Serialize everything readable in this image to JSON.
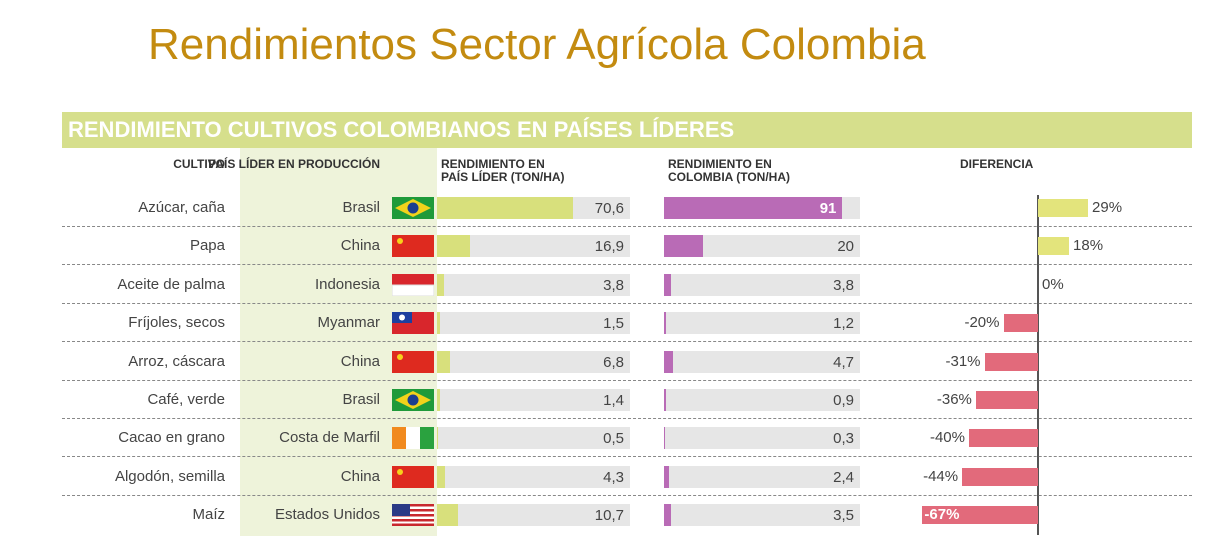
{
  "title": "Rendimientos Sector Agrícola Colombia",
  "table": {
    "heading": "RENDIMIENTO CULTIVOS COLOMBIANOS EN PAÍSES LÍDERES",
    "headers": [
      "CULTIVO",
      "PAÍS LÍDER EN PRODUCCIÓN",
      "RENDIMIENTO EN\nPAÍS LÍDER (TON/HA)",
      "RENDIMIENTO EN\nCOLOMBIA (TON/HA)",
      "DIFERENCIA"
    ],
    "crops": [
      "Azúcar, caña",
      "Papa",
      "Aceite de palma",
      "Fríjoles, secos",
      "Arroz, cáscara",
      "Café, verde",
      "Cacao en grano",
      "Algodón, semilla",
      "Maíz"
    ],
    "countries": [
      "Brasil",
      "China",
      "Indonesia",
      "Myanmar",
      "China",
      "Brasil",
      "Costa de Marfil",
      "China",
      "Estados Unidos"
    ],
    "leader": {
      "values": [
        70.6,
        16.9,
        3.8,
        1.5,
        6.8,
        1.4,
        0.5,
        4.3,
        10.7
      ],
      "value_labels": [
        "70,6",
        "16,9",
        "3,8",
        "1,5",
        "6,8",
        "1,4",
        "0,5",
        "4,3",
        "10,7"
      ],
      "color": "#d8e07c",
      "xlim": [
        0,
        100
      ]
    },
    "colombia": {
      "values": [
        91,
        20,
        3.8,
        1.2,
        4.7,
        0.9,
        0.3,
        2.4,
        3.5
      ],
      "value_labels": [
        "91",
        "20",
        "3,8",
        "1,2",
        "4,7",
        "0,9",
        "0,3",
        "2,4",
        "3,5"
      ],
      "color": "#b96bb6",
      "xlim": [
        0,
        100
      ]
    },
    "difference": {
      "values": [
        29,
        18,
        0,
        -20,
        -31,
        -36,
        -40,
        -44,
        -67
      ],
      "value_labels": [
        "29%",
        "18%",
        "0%",
        "-20%",
        "-31%",
        "-36%",
        "-40%",
        "-44%",
        "-67%"
      ],
      "positive_color": "#e3e47c",
      "negative_color": "#e26a7b",
      "xlim": [
        -80,
        40
      ]
    }
  }
}
